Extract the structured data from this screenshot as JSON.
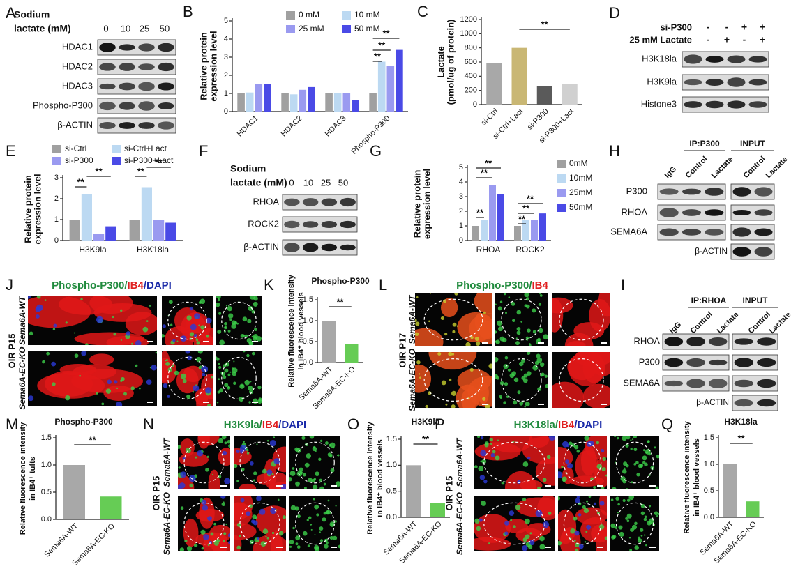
{
  "chart_data": [
    {
      "panel": "B",
      "type": "bar",
      "ylabel": [
        "Relative protein",
        "expression level"
      ],
      "categories": [
        "HDAC1",
        "HDAC2",
        "HDAC3",
        "Phospho-P300"
      ],
      "series": [
        {
          "name": "0 mM",
          "color": "#a0a0a0",
          "values": [
            1,
            1,
            1,
            1
          ]
        },
        {
          "name": "10 mM",
          "color": "#bcd9f2",
          "values": [
            1.05,
            0.95,
            1.0,
            2.75
          ]
        },
        {
          "name": "25 mM",
          "color": "#9a9af0",
          "values": [
            1.5,
            1.2,
            1.0,
            2.5
          ]
        },
        {
          "name": "50 mM",
          "color": "#4a4ae6",
          "values": [
            1.5,
            1.35,
            0.65,
            3.4
          ]
        }
      ],
      "ylim": [
        0,
        5
      ],
      "yticks": [
        0,
        1,
        2,
        3,
        4,
        5
      ],
      "annotations": [
        "**",
        "**",
        "**"
      ]
    },
    {
      "panel": "C",
      "type": "bar",
      "ylabel": [
        "Lactate",
        "(pmol/ug of protein)"
      ],
      "categories": [
        "si-Ctrl",
        "si-Ctrl+Lact",
        "si-P300",
        "si-P300+Lact"
      ],
      "values": [
        590,
        800,
        260,
        290
      ],
      "colors": [
        "#a8a8a8",
        "#c9b774",
        "#5a5a5a",
        "#d0d0d0"
      ],
      "ylim": [
        0,
        1200
      ],
      "yticks": [
        0,
        200,
        400,
        600,
        800,
        1000,
        1200
      ],
      "annotations": [
        "**"
      ]
    },
    {
      "panel": "E",
      "type": "bar",
      "ylabel": [
        "Relative protein",
        "expression level"
      ],
      "categories": [
        "H3K9la",
        "H3K18la"
      ],
      "series": [
        {
          "name": "si-Ctrl",
          "color": "#a0a0a0",
          "values": [
            1,
            1
          ]
        },
        {
          "name": "si-Ctrl+Lact",
          "color": "#bcd9f2",
          "values": [
            2.2,
            2.55
          ]
        },
        {
          "name": "si-P300",
          "color": "#9a9af0",
          "values": [
            0.33,
            1.0
          ]
        },
        {
          "name": "si-P300+Lact",
          "color": "#4a4ae6",
          "values": [
            0.68,
            0.85
          ]
        }
      ],
      "ylim": [
        0,
        3
      ],
      "yticks": [
        0,
        1,
        2,
        3
      ],
      "annotations": [
        "**",
        "**",
        "**",
        "**"
      ]
    },
    {
      "panel": "G",
      "type": "bar",
      "ylabel": [
        "Relative protein",
        "expression level"
      ],
      "categories": [
        "RHOA",
        "ROCK2"
      ],
      "series": [
        {
          "name": "0mM",
          "color": "#a0a0a0",
          "values": [
            1,
            1
          ]
        },
        {
          "name": "10mM",
          "color": "#bcd9f2",
          "values": [
            1.4,
            1.4
          ]
        },
        {
          "name": "25mM",
          "color": "#9a9af0",
          "values": [
            3.8,
            1.4
          ]
        },
        {
          "name": "50mM",
          "color": "#4a4ae6",
          "values": [
            3.15,
            1.85
          ]
        }
      ],
      "ylim": [
        0,
        5
      ],
      "yticks": [
        0,
        1,
        2,
        3,
        4,
        5
      ],
      "annotations": [
        "**",
        "**",
        "**",
        "**",
        "**",
        "**"
      ]
    },
    {
      "panel": "K",
      "type": "bar",
      "title": "Phospho-P300",
      "ylabel": [
        "Relative fluorescence intensity",
        "in IB4⁺ blood vessels"
      ],
      "categories": [
        "Sema6A-WT",
        "Sema6A-EC-KO"
      ],
      "values": [
        1.0,
        0.45
      ],
      "colors": [
        "#a8a8a8",
        "#66cc55"
      ],
      "ylim": [
        0,
        1.5
      ],
      "yticks": [
        {
          "value": 0,
          "label": "0.0"
        },
        {
          "value": 0.5,
          "label": "0.5"
        },
        {
          "value": 1,
          "label": "1.0"
        },
        {
          "value": 1.5,
          "label": "1.5"
        }
      ],
      "annotations": [
        "**"
      ]
    },
    {
      "panel": "M",
      "type": "bar",
      "title": "Phospho-P300",
      "ylabel": [
        "Relative fluorescence intensity",
        "in IB4⁺ tufts"
      ],
      "categories": [
        "Sema6A-WT",
        "Sema6A-EC-KO"
      ],
      "values": [
        1.0,
        0.42
      ],
      "colors": [
        "#a8a8a8",
        "#66cc55"
      ],
      "ylim": [
        0,
        1.5
      ],
      "yticks": [
        {
          "value": 0,
          "label": "0.0"
        },
        {
          "value": 0.5,
          "label": "0.5"
        },
        {
          "value": 1,
          "label": "1.0"
        },
        {
          "value": 1.5,
          "label": "1.5"
        }
      ],
      "annotations": [
        "**"
      ]
    },
    {
      "panel": "O",
      "type": "bar",
      "title": "H3K9la",
      "ylabel": [
        "Relative fluorescence intensity",
        "in IB4⁺ blood vessels"
      ],
      "categories": [
        "Sema6A-WT",
        "Sema6A-EC-KO"
      ],
      "values": [
        1.0,
        0.27
      ],
      "colors": [
        "#a8a8a8",
        "#66cc55"
      ],
      "ylim": [
        0,
        1.5
      ],
      "yticks": [
        {
          "value": 0,
          "label": "0.0"
        },
        {
          "value": 0.5,
          "label": "0.5"
        },
        {
          "value": 1,
          "label": "1.0"
        },
        {
          "value": 1.5,
          "label": "1.5"
        }
      ],
      "annotations": [
        "**"
      ]
    },
    {
      "panel": "Q",
      "type": "bar",
      "title": "H3K18la",
      "ylabel": [
        "Relative fluorescence intensity",
        "in IB4⁺ blood vessels"
      ],
      "categories": [
        "Sema6A-WT",
        "Sema6A-EC-KO"
      ],
      "values": [
        1.0,
        0.3
      ],
      "colors": [
        "#a8a8a8",
        "#66cc55"
      ],
      "ylim": [
        0,
        1.5
      ],
      "yticks": [
        {
          "value": 0,
          "label": "0.0"
        },
        {
          "value": 0.5,
          "label": "0.5"
        },
        {
          "value": 1,
          "label": "1.0"
        },
        {
          "value": 1.5,
          "label": "1.5"
        }
      ],
      "annotations": [
        "**"
      ]
    }
  ],
  "blots": [
    {
      "panel": "A",
      "header": [
        "Sodium",
        "lactate (mM)"
      ],
      "lanes": [
        "0",
        "10",
        "25",
        "50"
      ],
      "rows": [
        "HDAC1",
        "HDAC2",
        "HDAC3",
        "Phospho-P300",
        "β-ACTIN"
      ]
    },
    {
      "panel": "D",
      "conditions": [
        {
          "label": "si-P300",
          "signs": [
            "-",
            "-",
            "+",
            "+"
          ]
        },
        {
          "label": "25 mM Lactate",
          "signs": [
            "-",
            "+",
            "-",
            "+"
          ]
        }
      ],
      "rows": [
        "H3K18la",
        "H3K9la",
        "Histone3"
      ]
    },
    {
      "panel": "F",
      "header": [
        "Sodium",
        "lactate (mM)"
      ],
      "lanes": [
        "0",
        "10",
        "25",
        "50"
      ],
      "rows": [
        "RHOA",
        "ROCK2",
        "β-ACTIN"
      ]
    },
    {
      "panel": "H",
      "groups": [
        "IP:P300",
        "INPUT"
      ],
      "lanes": [
        "IgG",
        "Control",
        "Lactate",
        "Control",
        "Lactate"
      ],
      "rows": [
        "P300",
        "RHOA",
        "SEMA6A",
        "β-ACTIN"
      ]
    },
    {
      "panel": "I",
      "groups": [
        "IP:RHOA",
        "INPUT"
      ],
      "lanes": [
        "IgG",
        "Control",
        "Lactate",
        "Control",
        "Lactate"
      ],
      "rows": [
        "RHOA",
        "P300",
        "SEMA6A",
        "β-ACTIN"
      ]
    }
  ],
  "images": [
    {
      "panel": "J",
      "title": [
        {
          "text": "Phospho-P300",
          "color": "#1f8a3c"
        },
        {
          "text": "/",
          "color": "#1f8a3c"
        },
        {
          "text": "IB4",
          "color": "#e02020"
        },
        {
          "text": "/",
          "color": "#1a2aa8"
        },
        {
          "text": "DAPI",
          "color": "#1a2aa8"
        }
      ],
      "stage": "OIR P15",
      "rows": [
        "Sema6A-WT",
        "Sema6A-EC-KO"
      ]
    },
    {
      "panel": "L",
      "title": [
        {
          "text": "Phospho-P300",
          "color": "#1f8a3c"
        },
        {
          "text": "/",
          "color": "#1f8a3c"
        },
        {
          "text": "IB4",
          "color": "#e02020"
        }
      ],
      "stage": "OIR P17",
      "rows": [
        "Sema6A-WT",
        "Sema6A-EC-KO"
      ]
    },
    {
      "panel": "N",
      "title": [
        {
          "text": "H3K9la",
          "color": "#1f8a3c"
        },
        {
          "text": "/",
          "color": "#1f8a3c"
        },
        {
          "text": "IB4",
          "color": "#e02020"
        },
        {
          "text": "/",
          "color": "#1a2aa8"
        },
        {
          "text": "DAPI",
          "color": "#1a2aa8"
        }
      ],
      "stage": "OIR P15",
      "rows": [
        "Sema6A-WT",
        "Sema6A-EC-KO"
      ]
    },
    {
      "panel": "P",
      "title": [
        {
          "text": "H3K18la",
          "color": "#1f8a3c"
        },
        {
          "text": "/",
          "color": "#1f8a3c"
        },
        {
          "text": "IB4",
          "color": "#e02020"
        },
        {
          "text": "/",
          "color": "#1a2aa8"
        },
        {
          "text": "DAPI",
          "color": "#1a2aa8"
        }
      ],
      "stage": "OIR P15",
      "rows": [
        "Sema6A-WT",
        "Sema6A-EC-KO"
      ]
    }
  ]
}
